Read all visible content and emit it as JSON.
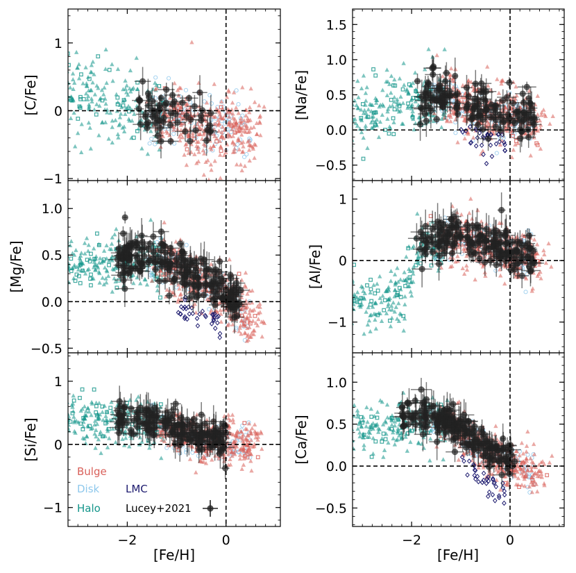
{
  "figure": {
    "colors": {
      "bulge": "#d9605a",
      "disk": "#8ec8ec",
      "halo": "#13958a",
      "lmc": "#1c1a6e",
      "lucey": "#222222"
    }
  },
  "legend": {
    "bulge": "Bulge",
    "disk": "Disk",
    "halo": "Halo",
    "lmc": "LMC",
    "lucey": "Lucey+2021"
  },
  "chart_data": [
    {
      "id": "cfe",
      "type": "scatter",
      "ylabel": "[C/Fe]",
      "xlabel": "",
      "xlim": [
        -3.2,
        1.1
      ],
      "ylim": [
        -1.03,
        1.5
      ],
      "xticks": [
        -2,
        0
      ],
      "yticks": [
        -1,
        0,
        1
      ],
      "ytick_labels": [
        "−1",
        "0",
        "1"
      ],
      "series_present": [
        "halo",
        "bulge",
        "disk",
        "lucey"
      ],
      "trend": {
        "anchors": [
          [
            -3.2,
            0.25
          ],
          [
            -2.0,
            0.05
          ],
          [
            -0.3,
            -0.25
          ]
        ],
        "sd": 0.25
      },
      "lucey": {
        "xrange": [
          -1.8,
          -0.25
        ],
        "yrange": [
          -0.45,
          0.9
        ],
        "n": 60
      },
      "annotations": []
    },
    {
      "id": "nafe",
      "type": "scatter",
      "ylabel": "[Na/Fe]",
      "xlabel": "",
      "xlim": [
        -3.2,
        1.1
      ],
      "ylim": [
        -0.72,
        1.72
      ],
      "xticks": [
        -2,
        0
      ],
      "yticks": [
        -0.5,
        0.0,
        0.5,
        1.0,
        1.5
      ],
      "ytick_labels": [
        "−0.5",
        "0.0",
        "0.5",
        "1.0",
        "1.5"
      ],
      "series_present": [
        "halo",
        "disk",
        "bulge",
        "lmc",
        "lucey"
      ],
      "trend": {
        "anchors": [
          [
            -3.2,
            0.2
          ],
          [
            -1.5,
            0.45
          ],
          [
            -0.5,
            0.25
          ],
          [
            0.5,
            0.1
          ]
        ],
        "sd": 0.2
      },
      "lucey": {
        "xrange": [
          -1.9,
          0.5
        ],
        "yrange": [
          -0.5,
          1.15
        ],
        "n": 150
      },
      "annotations": []
    },
    {
      "id": "mgfe",
      "type": "scatter",
      "ylabel": "[Mg/Fe]",
      "xlabel": "",
      "xlim": [
        -3.2,
        1.1
      ],
      "ylim": [
        -0.55,
        1.3
      ],
      "xticks": [
        -2,
        0
      ],
      "yticks": [
        -0.5,
        0.0,
        0.5,
        1.0
      ],
      "ytick_labels": [
        "−0.5",
        "0.0",
        "0.5",
        "1.0"
      ],
      "series_present": [
        "halo",
        "bulge",
        "disk",
        "lmc",
        "lucey"
      ],
      "trend": {
        "anchors": [
          [
            -3.2,
            0.4
          ],
          [
            -1.6,
            0.45
          ],
          [
            -1.0,
            0.35
          ],
          [
            0.0,
            0.05
          ],
          [
            0.5,
            -0.2
          ]
        ],
        "sd": 0.14
      },
      "lucey": {
        "xrange": [
          -2.2,
          0.3
        ],
        "yrange": [
          -0.3,
          1.0
        ],
        "n": 220
      },
      "annotations": []
    },
    {
      "id": "alfe",
      "type": "scatter",
      "ylabel": "[Al/Fe]",
      "xlabel": "",
      "xlim": [
        -3.2,
        1.1
      ],
      "ylim": [
        -1.5,
        1.3
      ],
      "xticks": [
        -2,
        0
      ],
      "yticks": [
        -1,
        0,
        1
      ],
      "ytick_labels": [
        "−1",
        "0",
        "1"
      ],
      "series_present": [
        "halo",
        "bulge",
        "disk",
        "lucey"
      ],
      "trend": {
        "anchors": [
          [
            -3.2,
            -0.7
          ],
          [
            -2.2,
            -0.6
          ],
          [
            -1.8,
            0.2
          ],
          [
            -1.0,
            0.35
          ],
          [
            0.0,
            0.1
          ],
          [
            0.5,
            0.0
          ]
        ],
        "sd": 0.2
      },
      "lucey": {
        "xrange": [
          -1.9,
          0.5
        ],
        "yrange": [
          -0.9,
          0.9
        ],
        "n": 180
      },
      "annotations": []
    },
    {
      "id": "sife",
      "type": "scatter",
      "ylabel": "[Si/Fe]",
      "xlabel": "[Fe/H]",
      "xlim": [
        -3.2,
        1.1
      ],
      "ylim": [
        -1.3,
        1.45
      ],
      "xticks": [
        -2,
        0
      ],
      "xtick_labels": [
        "−2",
        "0"
      ],
      "yticks": [
        -1,
        0,
        1
      ],
      "ytick_labels": [
        "−1",
        "0",
        "1"
      ],
      "series_present": [
        "halo",
        "bulge",
        "disk",
        "lucey"
      ],
      "trend": {
        "anchors": [
          [
            -3.2,
            0.45
          ],
          [
            -1.5,
            0.35
          ],
          [
            -0.5,
            0.05
          ],
          [
            0.5,
            0.0
          ]
        ],
        "sd": 0.16
      },
      "lucey": {
        "xrange": [
          -2.2,
          0.0
        ],
        "yrange": [
          -0.95,
          1.0
        ],
        "n": 180
      },
      "annotations": []
    },
    {
      "id": "cafe",
      "type": "scatter",
      "ylabel": "[Ca/Fe]",
      "xlabel": "[Fe/H]",
      "xlim": [
        -3.2,
        1.1
      ],
      "ylim": [
        -0.72,
        1.35
      ],
      "xticks": [
        -2,
        0
      ],
      "xtick_labels": [
        "−2",
        "0"
      ],
      "yticks": [
        -0.5,
        0.0,
        0.5,
        1.0
      ],
      "ytick_labels": [
        "−0.5",
        "0.0",
        "0.5",
        "1.0"
      ],
      "series_present": [
        "halo",
        "bulge",
        "disk",
        "lmc",
        "lucey"
      ],
      "trend": {
        "anchors": [
          [
            -3.2,
            0.45
          ],
          [
            -1.8,
            0.55
          ],
          [
            -1.2,
            0.5
          ],
          [
            -0.5,
            0.15
          ],
          [
            0.3,
            -0.05
          ]
        ],
        "sd": 0.13
      },
      "lucey": {
        "xrange": [
          -2.2,
          0.1
        ],
        "yrange": [
          -0.25,
          1.1
        ],
        "n": 200
      },
      "annotations": []
    }
  ]
}
